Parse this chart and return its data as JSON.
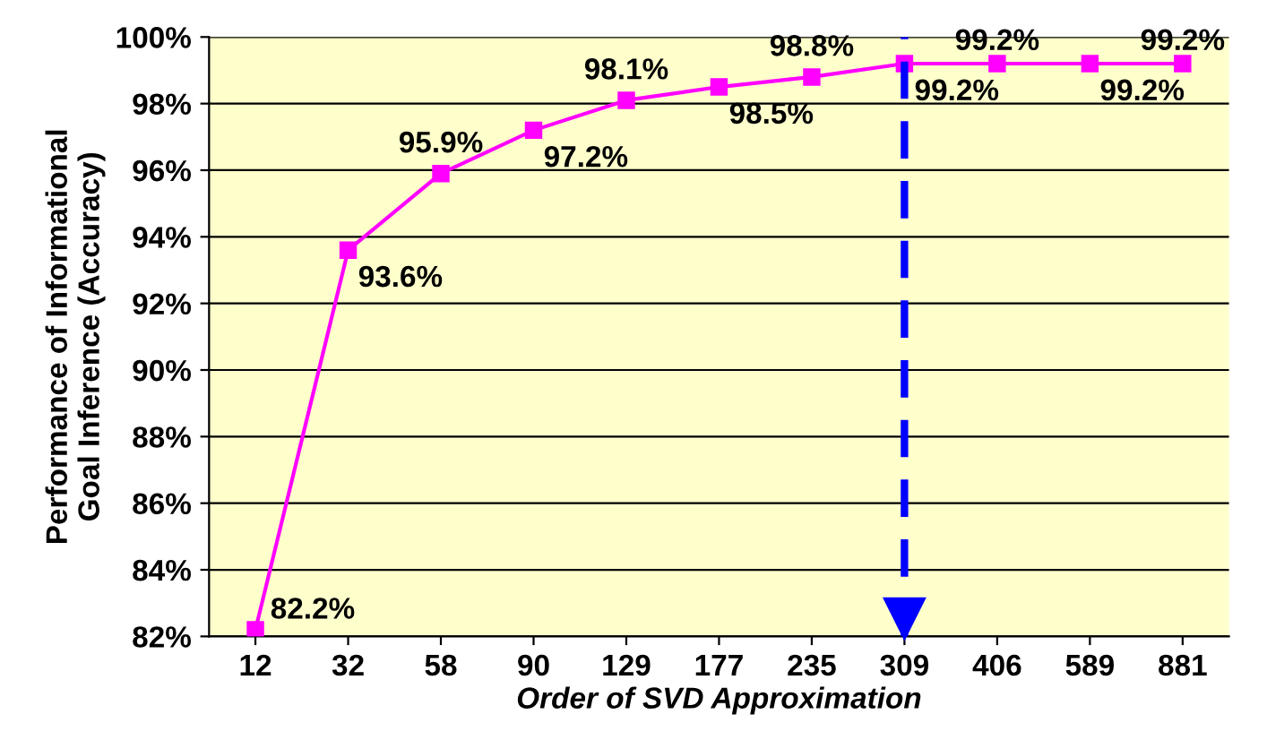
{
  "chart_data": {
    "type": "line",
    "xlabel": "Order of SVD Approximation",
    "ylabel": "Performance of Informational\nGoal Inference (Accuracy)",
    "categories": [
      "12",
      "32",
      "58",
      "90",
      "129",
      "177",
      "235",
      "309",
      "406",
      "589",
      "881"
    ],
    "series": [
      {
        "color": "#ff00ff",
        "values": [
          82.2,
          93.6,
          95.9,
          97.2,
          98.1,
          98.5,
          98.8,
          99.2,
          99.2,
          99.2,
          99.2
        ],
        "value_labels": [
          "82.2%",
          "93.6%",
          "95.9%",
          "97.2%",
          "98.1%",
          "98.5%",
          "98.8%",
          "99.2%",
          "99.2%",
          "99.2%",
          "99.2%"
        ]
      }
    ],
    "ylim": [
      82,
      100
    ],
    "yticks": [
      {
        "value": 82,
        "label": "82%"
      },
      {
        "value": 84,
        "label": "84%"
      },
      {
        "value": 86,
        "label": "86%"
      },
      {
        "value": 88,
        "label": "88%"
      },
      {
        "value": 90,
        "label": "90%"
      },
      {
        "value": 92,
        "label": "92%"
      },
      {
        "value": 94,
        "label": "94%"
      },
      {
        "value": 96,
        "label": "96%"
      },
      {
        "value": 98,
        "label": "98%"
      },
      {
        "value": 100,
        "label": "100%"
      }
    ],
    "ref_lines": [
      {
        "axis": "x",
        "value": "309",
        "color": "#0000ff",
        "line_style": "dashed"
      }
    ],
    "grid": "y",
    "marker": "square",
    "line_style": "solid",
    "legend": false
  }
}
